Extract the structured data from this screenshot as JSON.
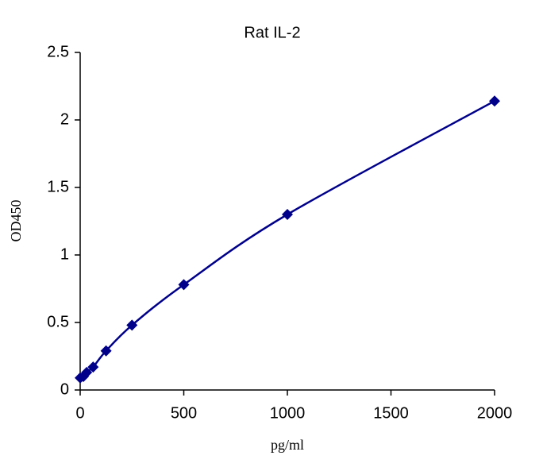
{
  "chart_data": {
    "type": "scatter",
    "title": "Rat IL-2",
    "x_label": "pg/ml",
    "y_label": "OD450",
    "series": [
      {
        "name": "Rat IL-2",
        "color": "#00008b",
        "x": [
          0,
          15.6,
          31.25,
          62.5,
          125,
          250,
          500,
          1000,
          2000
        ],
        "values": [
          0.09,
          0.1,
          0.13,
          0.17,
          0.29,
          0.48,
          0.78,
          1.3,
          2.14
        ]
      }
    ],
    "xlim": [
      0,
      2000
    ],
    "xticks": [
      0,
      500,
      1000,
      1500,
      2000
    ],
    "ylim": [
      0,
      2.5
    ],
    "yticks": [
      0,
      0.5,
      1,
      1.5,
      2,
      2.5
    ],
    "grid": false,
    "trendline": true
  }
}
